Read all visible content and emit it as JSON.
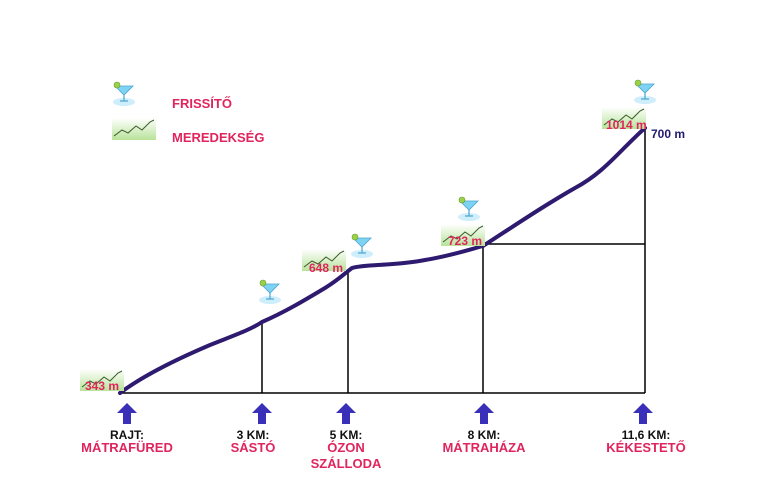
{
  "legend": {
    "items": [
      {
        "icon": "cocktail-icon",
        "label": "FRISSÍTŐ"
      },
      {
        "icon": "steepness-icon",
        "label": "MEREDEKSÉG"
      }
    ]
  },
  "elevations": {
    "start": "343 m",
    "ozon": "648 m",
    "matrahaza": "723 m",
    "kekesteto": "1014 m",
    "total_climb": "700 m"
  },
  "checkpoints": [
    {
      "dist": "RAJT:",
      "name": "MÁTRAFÜRED"
    },
    {
      "dist": "3 KM:",
      "name": "SÁSTÓ"
    },
    {
      "dist": "5 KM:",
      "name": "ÓZON SZÁLLODA"
    },
    {
      "dist": "8 KM:",
      "name": "MÁTRAHÁZA"
    },
    {
      "dist": "11,6 KM:",
      "name": "KÉKESTETŐ"
    }
  ],
  "colors": {
    "profile": "#2e1a6e",
    "arrow": "#3a2fb8",
    "accent": "#e0245e",
    "legend_green": "#bfe6a0"
  }
}
